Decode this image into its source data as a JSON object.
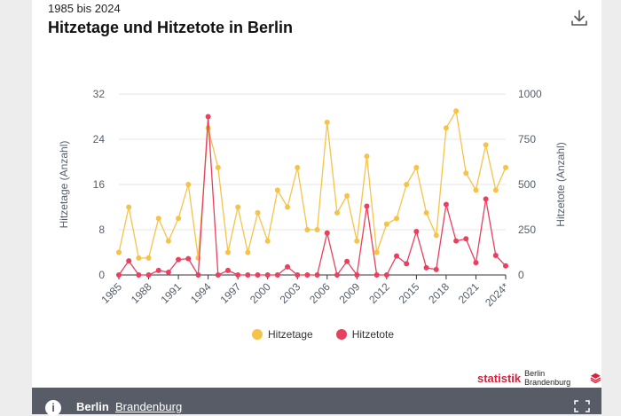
{
  "header": {
    "subtitle": "1985 bis 2024",
    "title": "Hitzetage und Hitzetote in Berlin",
    "download_icon": "download-icon"
  },
  "colors": {
    "hitzetage": "#f6c34a",
    "hitzetote": "#e8405f",
    "axis_text": "#555d6b",
    "grid": "#e4e4e4",
    "footer_bg": "#575c66",
    "brand": "#d9213c"
  },
  "chart_data": {
    "type": "line",
    "categories": [
      "1985",
      "1986",
      "1987",
      "1988",
      "1989",
      "1990",
      "1991",
      "1992",
      "1993",
      "1994",
      "1995",
      "1996",
      "1997",
      "1998",
      "1999",
      "2000",
      "2001",
      "2002",
      "2003",
      "2004",
      "2005",
      "2006",
      "2007",
      "2008",
      "2009",
      "2010",
      "2011",
      "2012",
      "2013",
      "2014",
      "2015",
      "2016",
      "2017",
      "2018",
      "2019",
      "2020",
      "2021",
      "2022",
      "2023",
      "2024*"
    ],
    "x_tick_labels": [
      "1985",
      "1988",
      "1991",
      "1994",
      "1997",
      "2000",
      "2003",
      "2006",
      "2009",
      "2012",
      "2015",
      "2018",
      "2021",
      "2024*"
    ],
    "series": [
      {
        "name": "Hitzetage",
        "axis": "left",
        "values": [
          4,
          12,
          3,
          3,
          10,
          6,
          10,
          16,
          3,
          26,
          19,
          4,
          12,
          4,
          11,
          6,
          15,
          12,
          19,
          8,
          8,
          27,
          11,
          14,
          6,
          21,
          4,
          9,
          10,
          16,
          19,
          11,
          7,
          26,
          29,
          18,
          15,
          23,
          15,
          19
        ]
      },
      {
        "name": "Hitzetote",
        "axis": "right",
        "values": [
          0,
          78,
          0,
          0,
          25,
          15,
          85,
          90,
          0,
          875,
          0,
          25,
          0,
          0,
          0,
          0,
          0,
          45,
          0,
          0,
          0,
          232,
          0,
          75,
          0,
          380,
          0,
          0,
          105,
          62,
          240,
          40,
          30,
          390,
          188,
          200,
          68,
          420,
          108,
          50
        ]
      }
    ],
    "left_axis": {
      "label": "Hitzetage (Anzahl)",
      "ticks": [
        0,
        8,
        16,
        24,
        32
      ],
      "ylim": [
        0,
        32
      ]
    },
    "right_axis": {
      "label": "Hitzetote (Anzahl)",
      "ticks": [
        0,
        250,
        500,
        750,
        1000
      ],
      "ylim": [
        0,
        1000
      ]
    },
    "grid": true,
    "legend_position": "bottom"
  },
  "legend": {
    "item1": "Hitzetage",
    "item2": "Hitzetote"
  },
  "brand": {
    "name": "statistik",
    "sub": "Berlin Brandenburg"
  },
  "footer": {
    "info_icon": "i",
    "tab_active": "Berlin",
    "tab_inactive": "Brandenburg",
    "fullscreen_icon": "fullscreen-icon"
  }
}
